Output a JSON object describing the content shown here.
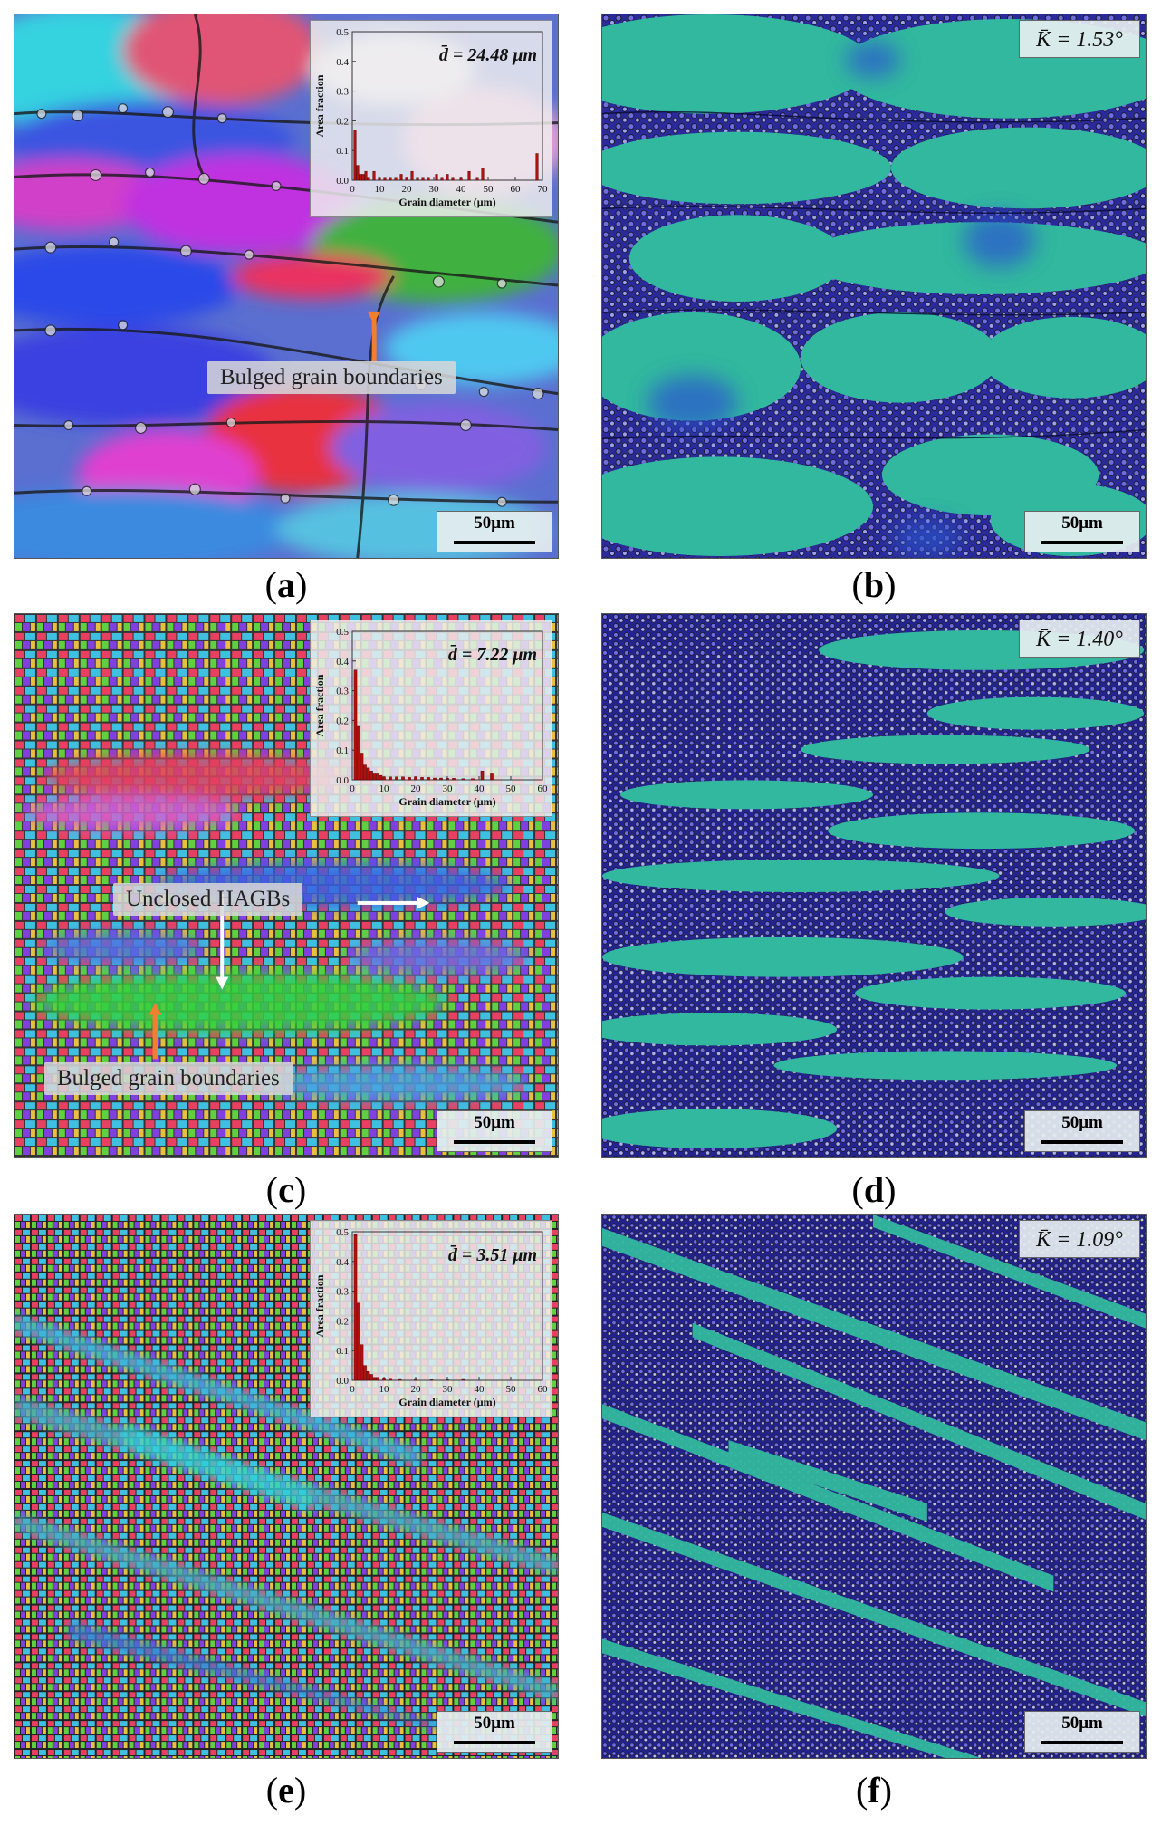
{
  "panels": {
    "a": {
      "label": "a",
      "mean_diameter_label": "d̄ = 24.48 μm",
      "annotations": {
        "bulged": "Bulged grain boundaries"
      },
      "scale_bar": "50μm"
    },
    "b": {
      "label": "b",
      "kam_label": "K̄ = 1.53°",
      "scale_bar": "50μm"
    },
    "c": {
      "label": "c",
      "mean_diameter_label": "d̄ = 7.22 μm",
      "annotations": {
        "unclosed": "Unclosed HAGBs",
        "bulged": "Bulged grain boundaries"
      },
      "scale_bar": "50μm"
    },
    "d": {
      "label": "d",
      "kam_label": "K̄ = 1.40°",
      "scale_bar": "50μm"
    },
    "e": {
      "label": "e",
      "mean_diameter_label": "d̄ = 3.51 μm",
      "scale_bar": "50μm"
    },
    "f": {
      "label": "f",
      "kam_label": "K̄ = 1.09°",
      "scale_bar": "50μm"
    }
  },
  "chart_data": [
    {
      "panel": "a",
      "type": "bar",
      "xlabel": "Grain diameter (μm)",
      "ylabel": "Area fraction",
      "xlim": [
        0,
        70
      ],
      "ylim": [
        0,
        0.5
      ],
      "xticks": [
        0,
        10,
        20,
        30,
        40,
        50,
        60,
        70
      ],
      "yticks": [
        0.0,
        0.1,
        0.2,
        0.3,
        0.4,
        0.5
      ],
      "bar_color": "#b01010",
      "x": [
        1,
        2,
        3,
        4,
        5,
        6,
        8,
        10,
        12,
        14,
        16,
        18,
        20,
        22,
        24,
        26,
        28,
        31,
        33,
        35,
        37,
        40,
        43,
        46,
        48,
        68
      ],
      "values": [
        0.17,
        0.05,
        0.02,
        0.02,
        0.03,
        0.01,
        0.03,
        0.01,
        0.01,
        0.01,
        0.01,
        0.02,
        0.01,
        0.03,
        0.01,
        0.01,
        0.01,
        0.02,
        0.01,
        0.02,
        0.01,
        0.01,
        0.03,
        0.01,
        0.04,
        0.09
      ]
    },
    {
      "panel": "c",
      "type": "bar",
      "xlabel": "Grain diameter (μm)",
      "ylabel": "Area fraction",
      "xlim": [
        0,
        60
      ],
      "ylim": [
        0,
        0.5
      ],
      "xticks": [
        0,
        10,
        20,
        30,
        40,
        50,
        60
      ],
      "yticks": [
        0.0,
        0.1,
        0.2,
        0.3,
        0.4,
        0.5
      ],
      "bar_color": "#b01010",
      "x": [
        1,
        2,
        3,
        4,
        5,
        6,
        7,
        8,
        9,
        10,
        12,
        14,
        16,
        18,
        20,
        22,
        24,
        26,
        28,
        30,
        32,
        35,
        38,
        41,
        44
      ],
      "values": [
        0.37,
        0.18,
        0.09,
        0.05,
        0.04,
        0.03,
        0.02,
        0.02,
        0.015,
        0.01,
        0.01,
        0.01,
        0.01,
        0.008,
        0.01,
        0.008,
        0.008,
        0.006,
        0.006,
        0.005,
        0.005,
        0.004,
        0.004,
        0.03,
        0.02
      ]
    },
    {
      "panel": "e",
      "type": "bar",
      "xlabel": "Grain diameter (μm)",
      "ylabel": "Area fraction",
      "xlim": [
        0,
        60
      ],
      "ylim": [
        0,
        0.5
      ],
      "xticks": [
        0,
        10,
        20,
        30,
        40,
        50,
        60
      ],
      "yticks": [
        0.0,
        0.1,
        0.2,
        0.3,
        0.4,
        0.5
      ],
      "bar_color": "#b01010",
      "x": [
        1,
        2,
        3,
        4,
        5,
        6,
        7,
        8,
        10,
        12,
        15,
        20,
        25,
        30,
        35
      ],
      "values": [
        0.49,
        0.26,
        0.12,
        0.05,
        0.03,
        0.02,
        0.01,
        0.01,
        0.005,
        0.004,
        0.003,
        0.003,
        0.002,
        0.002,
        0.003
      ]
    }
  ]
}
